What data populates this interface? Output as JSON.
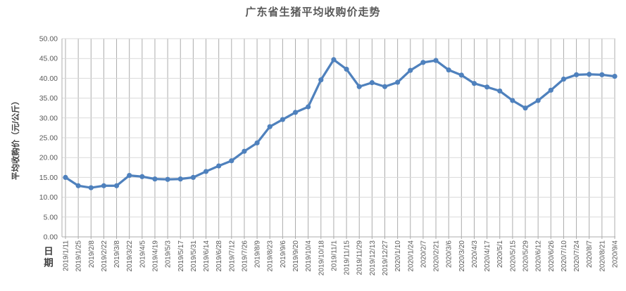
{
  "chart_data": {
    "type": "line",
    "title": "广东省生猪平均收购价走势",
    "xlabel": "日期",
    "ylabel": "平均收购价（元/公斤）",
    "categories": [
      "2019/1/11",
      "2019/1/25",
      "2019/2/8",
      "2019/2/22",
      "2019/3/8",
      "2019/3/22",
      "2019/4/5",
      "2019/4/19",
      "2019/5/3",
      "2019/5/17",
      "2019/5/31",
      "2019/6/14",
      "2019/6/28",
      "2019/7/12",
      "2019/7/26",
      "2019/8/9",
      "2019/8/23",
      "2019/9/6",
      "2019/9/20",
      "2019/10/4",
      "2019/10/18",
      "2019/11/1",
      "2019/11/15",
      "2019/11/29",
      "2019/12/13",
      "2019/12/27",
      "2020/1/10",
      "2020/1/24",
      "2020/2/7",
      "2020/2/21",
      "2020/3/6",
      "2020/3/20",
      "2020/4/3",
      "2020/4/17",
      "2020/5/1",
      "2020/5/15",
      "2020/5/29",
      "2020/6/12",
      "2020/6/26",
      "2020/7/10",
      "2020/7/24",
      "2020/8/7",
      "2020/8/21",
      "2020/9/4"
    ],
    "values": [
      15.0,
      12.9,
      12.4,
      12.9,
      12.9,
      15.5,
      15.2,
      14.6,
      14.5,
      14.6,
      15.0,
      16.5,
      17.9,
      19.2,
      21.6,
      23.7,
      27.8,
      29.6,
      31.4,
      32.8,
      39.6,
      44.7,
      42.3,
      37.9,
      38.9,
      37.9,
      39.0,
      42.0,
      44.0,
      44.5,
      42.1,
      40.8,
      38.7,
      37.8,
      36.8,
      34.4,
      32.5,
      34.4,
      37.0,
      39.8,
      40.9,
      41.0,
      40.9,
      40.5
    ],
    "ylim": [
      0,
      50
    ],
    "ytick_step": 5,
    "ytick_decimals": 2,
    "grid": true,
    "legend": "none",
    "marker": "circle",
    "colors": {
      "series_line": "#4F81BD",
      "h_gridline": "#D9D9D9",
      "v_gridline": "#ACACAC",
      "axis_line": "#ACACAC",
      "tick_label": "#595959",
      "title_text": "#595959",
      "axis_title_text": "#404040",
      "background": "#FFFFFF"
    }
  }
}
